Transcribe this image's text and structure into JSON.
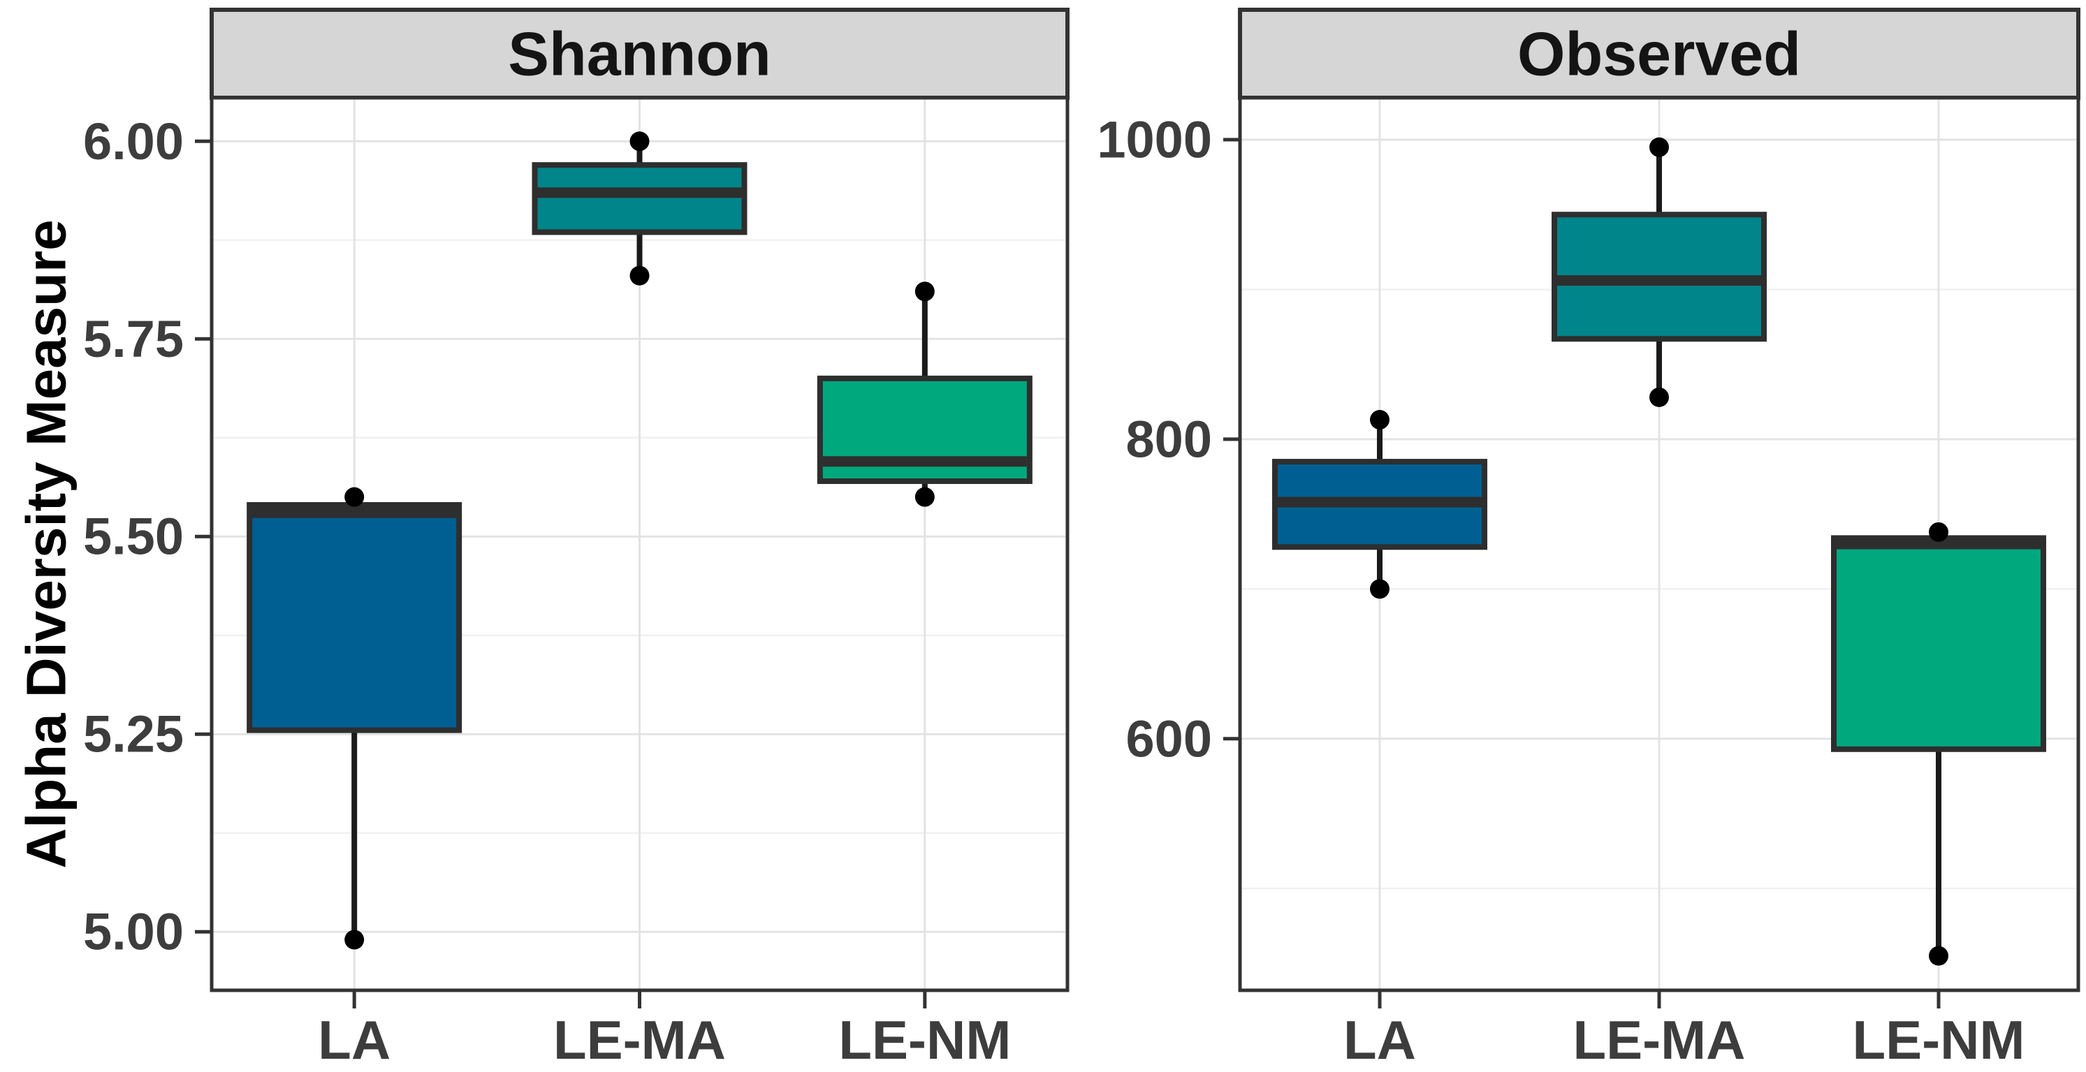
{
  "figure": {
    "y_axis_title": "Alpha Diversity Measure",
    "colors": {
      "la_fill": "#005f92",
      "le_ma_fill": "#00858a",
      "le_nm_fill": "#00a87d",
      "box_border": "#2e2e2e",
      "median": "#2e2e2e",
      "whisker": "#1a1a1a",
      "point": "#000000",
      "strip_bg": "#d6d6d6",
      "strip_border": "#333333",
      "panel_border": "#333333",
      "panel_bg": "#ffffff",
      "grid_major": "#e3e3e3",
      "grid_minor": "#f0f0f0",
      "tick_mark": "#333333",
      "axis_text": "#3d3d3d"
    }
  },
  "chart_data": [
    {
      "type": "boxplot",
      "panel": "Shannon",
      "categories": [
        "LA",
        "LE-MA",
        "LE-NM"
      ],
      "ylabel": "Alpha Diversity Measure",
      "ylim": [
        4.926,
        6.055
      ],
      "yticks": [
        5.0,
        5.25,
        5.5,
        5.75,
        6.0
      ],
      "ytick_labels": [
        "5.00",
        "5.25",
        "5.50",
        "5.75",
        "6.00"
      ],
      "yticks_minor": [
        5.125,
        5.375,
        5.625,
        5.875
      ],
      "grid": "major+minor",
      "legend": "none",
      "series": [
        {
          "name": "LA",
          "color_key": "la_fill",
          "min": 4.99,
          "q1": 5.255,
          "median": 5.53,
          "q3": 5.54,
          "max": 5.55,
          "points": [
            5.55,
            4.99
          ]
        },
        {
          "name": "LE-MA",
          "color_key": "le_ma_fill",
          "min": 5.83,
          "q1": 5.885,
          "median": 5.935,
          "q3": 5.97,
          "max": 6.0,
          "points": [
            6.0,
            5.83
          ]
        },
        {
          "name": "LE-NM",
          "color_key": "le_nm_fill",
          "min": 5.55,
          "q1": 5.57,
          "median": 5.595,
          "q3": 5.7,
          "max": 5.81,
          "points": [
            5.81,
            5.55
          ]
        }
      ]
    },
    {
      "type": "boxplot",
      "panel": "Observed",
      "categories": [
        "LA",
        "LE-MA",
        "LE-NM"
      ],
      "ylabel": "Alpha Diversity Measure",
      "ylim": [
        432,
        1028
      ],
      "yticks": [
        600,
        800,
        1000
      ],
      "ytick_labels": [
        "600",
        "800",
        "1000"
      ],
      "yticks_minor": [
        500,
        700,
        900
      ],
      "grid": "major+minor",
      "legend": "none",
      "series": [
        {
          "name": "LA",
          "color_key": "la_fill",
          "min": 700,
          "q1": 728,
          "median": 758,
          "q3": 785,
          "max": 813,
          "points": [
            813,
            700
          ]
        },
        {
          "name": "LE-MA",
          "color_key": "le_ma_fill",
          "min": 828,
          "q1": 867,
          "median": 906,
          "q3": 950,
          "max": 995,
          "points": [
            995,
            828
          ]
        },
        {
          "name": "LE-NM",
          "color_key": "le_nm_fill",
          "min": 455,
          "q1": 593,
          "median": 730,
          "q3": 734,
          "max": 738,
          "points": [
            738,
            455
          ]
        }
      ]
    }
  ]
}
